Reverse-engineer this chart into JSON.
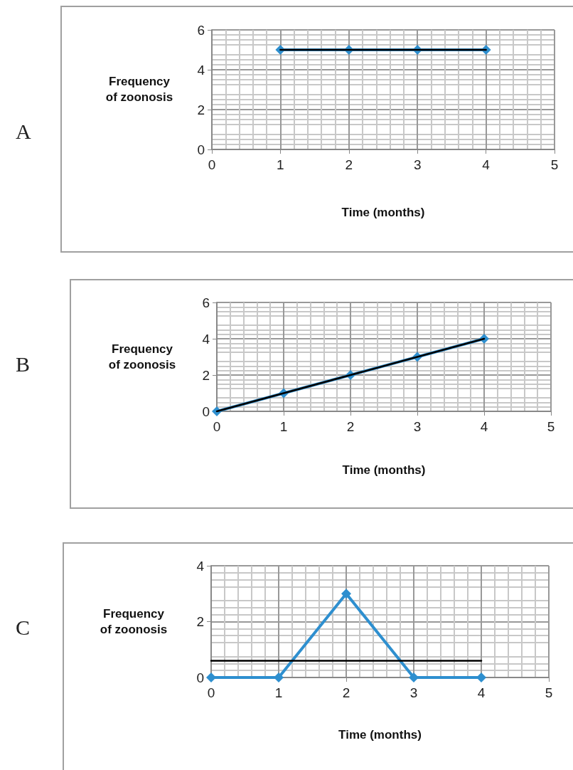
{
  "chart_data": [
    {
      "type": "line",
      "annotations": [
        "A"
      ],
      "xlabel": "Time (months)",
      "ylabel": "Frequency of zoonosis",
      "xlim": [
        0,
        5
      ],
      "xticks": [
        0,
        1,
        2,
        3,
        4,
        5
      ],
      "ylim": [
        0,
        6
      ],
      "yticks": [
        0,
        2,
        4,
        6
      ],
      "grid": true,
      "series": [
        {
          "color": "#2e8fcf",
          "marker": "diamond",
          "x": [
            1,
            2,
            3,
            4
          ],
          "values": [
            5,
            5,
            5,
            5
          ]
        },
        {
          "color": "#000000",
          "marker": "none",
          "x": [
            1,
            4
          ],
          "values": [
            5,
            5
          ]
        }
      ]
    },
    {
      "type": "line",
      "annotations": [
        "B"
      ],
      "xlabel": "Time (months)",
      "ylabel": "Frequency of zoonosis",
      "xlim": [
        0,
        5
      ],
      "xticks": [
        0,
        1,
        2,
        3,
        4,
        5
      ],
      "ylim": [
        0,
        6
      ],
      "yticks": [
        0,
        2,
        4,
        6
      ],
      "grid": true,
      "series": [
        {
          "color": "#2e8fcf",
          "marker": "diamond",
          "x": [
            0,
            1,
            2,
            3,
            4
          ],
          "values": [
            0,
            1,
            2,
            3,
            4
          ]
        },
        {
          "color": "#000000",
          "marker": "none",
          "x": [
            0,
            4
          ],
          "values": [
            0,
            4
          ]
        }
      ]
    },
    {
      "type": "line",
      "annotations": [
        "C"
      ],
      "xlabel": "Time (months)",
      "ylabel": "Frequency of zoonosis",
      "xlim": [
        0,
        5
      ],
      "xticks": [
        0,
        1,
        2,
        3,
        4,
        5
      ],
      "ylim": [
        0,
        4
      ],
      "yticks": [
        0,
        2,
        4
      ],
      "grid": true,
      "series": [
        {
          "color": "#2e8fcf",
          "marker": "diamond",
          "x": [
            0,
            1,
            2,
            3,
            4
          ],
          "values": [
            0,
            0,
            3,
            0,
            0
          ]
        },
        {
          "color": "#000000",
          "marker": "none",
          "x": [
            0,
            4
          ],
          "values": [
            0.6,
            0.6
          ]
        }
      ]
    }
  ]
}
